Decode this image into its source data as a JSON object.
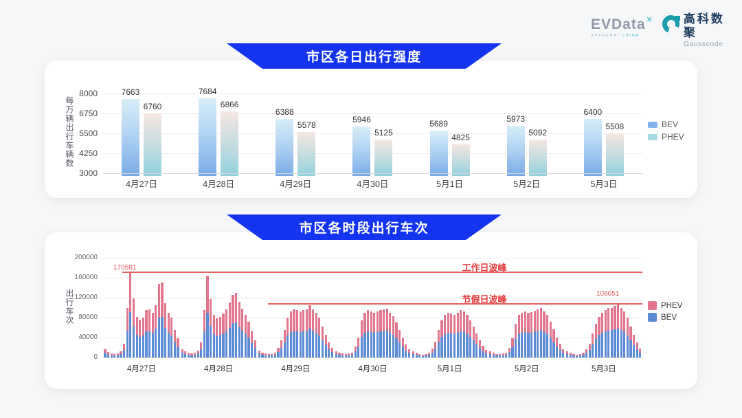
{
  "header": {
    "evdata_logo": {
      "text": "EVData",
      "sup": "✕",
      "sub_left": "SHANGHAI",
      "sub_right": "CHINA"
    },
    "gausscode_logo": {
      "cn": "高科数聚",
      "en": "Gausscode"
    }
  },
  "colors": {
    "banner_blue": "#1434f0",
    "bev_gradient_top": "#d8eef8",
    "bev_gradient_bottom": "#79a9e6",
    "phev_gradient_top": "#f6e7e2",
    "phev_gradient_bottom": "#92d1dc",
    "bev_solid": "#5c8bd6",
    "phev_solid": "#e1768e",
    "annotation_red": "#e13c3c",
    "legend1_bev": "#82b3ea",
    "legend1_phev": "#a6d9e1"
  },
  "chart_data": [
    {
      "type": "bar",
      "title": "市区各日出行强度",
      "ylabel": "每万辆出行车辆数",
      "ylim": [
        3000,
        8000
      ],
      "yticks": [
        8000,
        6750,
        5500,
        4250,
        3000
      ],
      "grid": true,
      "legend_position": "right",
      "categories": [
        "4月27日",
        "4月28日",
        "4月29日",
        "4月30日",
        "5月1日",
        "5月2日",
        "5月3日"
      ],
      "series": [
        {
          "name": "BEV",
          "values": [
            7663,
            7684,
            6388,
            5946,
            5689,
            5973,
            6400
          ]
        },
        {
          "name": "PHEV",
          "values": [
            6760,
            6866,
            5578,
            5125,
            4825,
            5092,
            5508
          ]
        }
      ],
      "legend": [
        "BEV",
        "PHEV"
      ]
    },
    {
      "type": "stacked-bar",
      "title": "市区各时段出行车次",
      "ylabel": "出行车次",
      "ylim": [
        0,
        200000
      ],
      "yticks": [
        200000,
        160000,
        120000,
        80000,
        40000,
        0
      ],
      "grid": true,
      "legend_position": "right",
      "categories": [
        "4月27日",
        "4月28日",
        "4月29日",
        "4月30日",
        "5月1日",
        "5月2日",
        "5月3日"
      ],
      "series": [
        {
          "name": "BEV",
          "days": [
            [
              9000,
              6000,
              4000,
              4000,
              4000,
              7000,
              15000,
              54000,
              91000,
              62000,
              45000,
              42000,
              44000,
              52000,
              53000,
              50000,
              58000,
              80000,
              81000,
              59000,
              49000,
              44000,
              30000,
              21000
            ],
            [
              9000,
              7000,
              5000,
              4000,
              5000,
              8000,
              16000,
              52000,
              90000,
              64000,
              47000,
              43000,
              45000,
              48000,
              53000,
              60000,
              69000,
              71000,
              61000,
              54000,
              47000,
              40000,
              29000,
              19000
            ],
            [
              8000,
              6000,
              4000,
              4000,
              4000,
              5000,
              11000,
              19000,
              30000,
              44000,
              51000,
              53000,
              52000,
              51000,
              52000,
              53000,
              58000,
              53000,
              50000,
              44000,
              34000,
              25000,
              17000,
              11000
            ],
            [
              7000,
              6000,
              4000,
              4000,
              4000,
              6000,
              12000,
              22000,
              41000,
              50000,
              52000,
              51000,
              50000,
              51000,
              52000,
              53000,
              54000,
              50000,
              46000,
              39000,
              30000,
              22000,
              14000,
              9000
            ],
            [
              7000,
              5000,
              4000,
              3000,
              4000,
              5000,
              10000,
              18000,
              30000,
              41000,
              47000,
              50000,
              48000,
              47000,
              50000,
              52000,
              51000,
              47000,
              41000,
              34000,
              26000,
              19000,
              13000,
              8000
            ],
            [
              7000,
              5000,
              4000,
              4000,
              4000,
              6000,
              11000,
              21000,
              37000,
              47000,
              50000,
              51000,
              50000,
              50000,
              52000,
              53000,
              55000,
              51000,
              47000,
              40000,
              31000,
              22000,
              15000,
              9000
            ],
            [
              7000,
              5000,
              4000,
              3000,
              4000,
              5000,
              9000,
              15000,
              26000,
              37000,
              45000,
              50000,
              52000,
              54000,
              55000,
              57000,
              58000,
              55000,
              51000,
              44000,
              34000,
              25000,
              17000,
              10000
            ]
          ]
        },
        {
          "name": "PHEV",
          "days": [
            [
              7000,
              5000,
              4000,
              3000,
              4000,
              6000,
              13000,
              46000,
              79581,
              57000,
              36000,
              34000,
              36000,
              43000,
              43000,
              40000,
              47000,
              68000,
              69000,
              50000,
              40000,
              36000,
              25000,
              17000
            ],
            [
              7000,
              5000,
              4000,
              4000,
              4000,
              6000,
              14000,
              43000,
              74000,
              53000,
              38000,
              35000,
              37000,
              40000,
              43000,
              50000,
              56000,
              59000,
              51000,
              44000,
              39000,
              32000,
              23000,
              15000
            ],
            [
              6000,
              4000,
              4000,
              3000,
              3000,
              4000,
              9000,
              16000,
              25000,
              36000,
              42000,
              43000,
              43000,
              42000,
              43000,
              44000,
              47000,
              43000,
              40000,
              36000,
              28000,
              20000,
              13000,
              9000
            ],
            [
              6000,
              4000,
              4000,
              3000,
              4000,
              4000,
              10000,
              18000,
              34000,
              40000,
              43000,
              42000,
              40000,
              41000,
              43000,
              43000,
              44000,
              40000,
              37000,
              31000,
              25000,
              18000,
              12000,
              8000
            ],
            [
              5000,
              4000,
              3000,
              3000,
              3000,
              4000,
              8000,
              14000,
              25000,
              34000,
              38000,
              40000,
              40000,
              39000,
              40000,
              43000,
              41000,
              38000,
              34000,
              28000,
              22000,
              16000,
              11000,
              7000
            ],
            [
              5000,
              4000,
              3000,
              3000,
              4000,
              4000,
              9000,
              17000,
              31000,
              38000,
              40000,
              41000,
              40000,
              41000,
              42000,
              43000,
              45000,
              42000,
              38000,
              32000,
              25000,
              18000,
              12000,
              8000
            ],
            [
              5000,
              4000,
              3000,
              3000,
              3000,
              4000,
              7000,
              13000,
              22000,
              31000,
              37000,
              40000,
              43000,
              45000,
              45000,
              46000,
              50051,
              45000,
              41000,
              36000,
              28000,
              20000,
              13000,
              8000
            ]
          ]
        }
      ],
      "annotations": [
        {
          "label": "工作日波峰",
          "value_label": "170581",
          "value": 170581
        },
        {
          "label": "节假日波峰",
          "value_label": "108051",
          "value": 108051
        }
      ],
      "legend": [
        "PHEV",
        "BEV"
      ]
    }
  ]
}
